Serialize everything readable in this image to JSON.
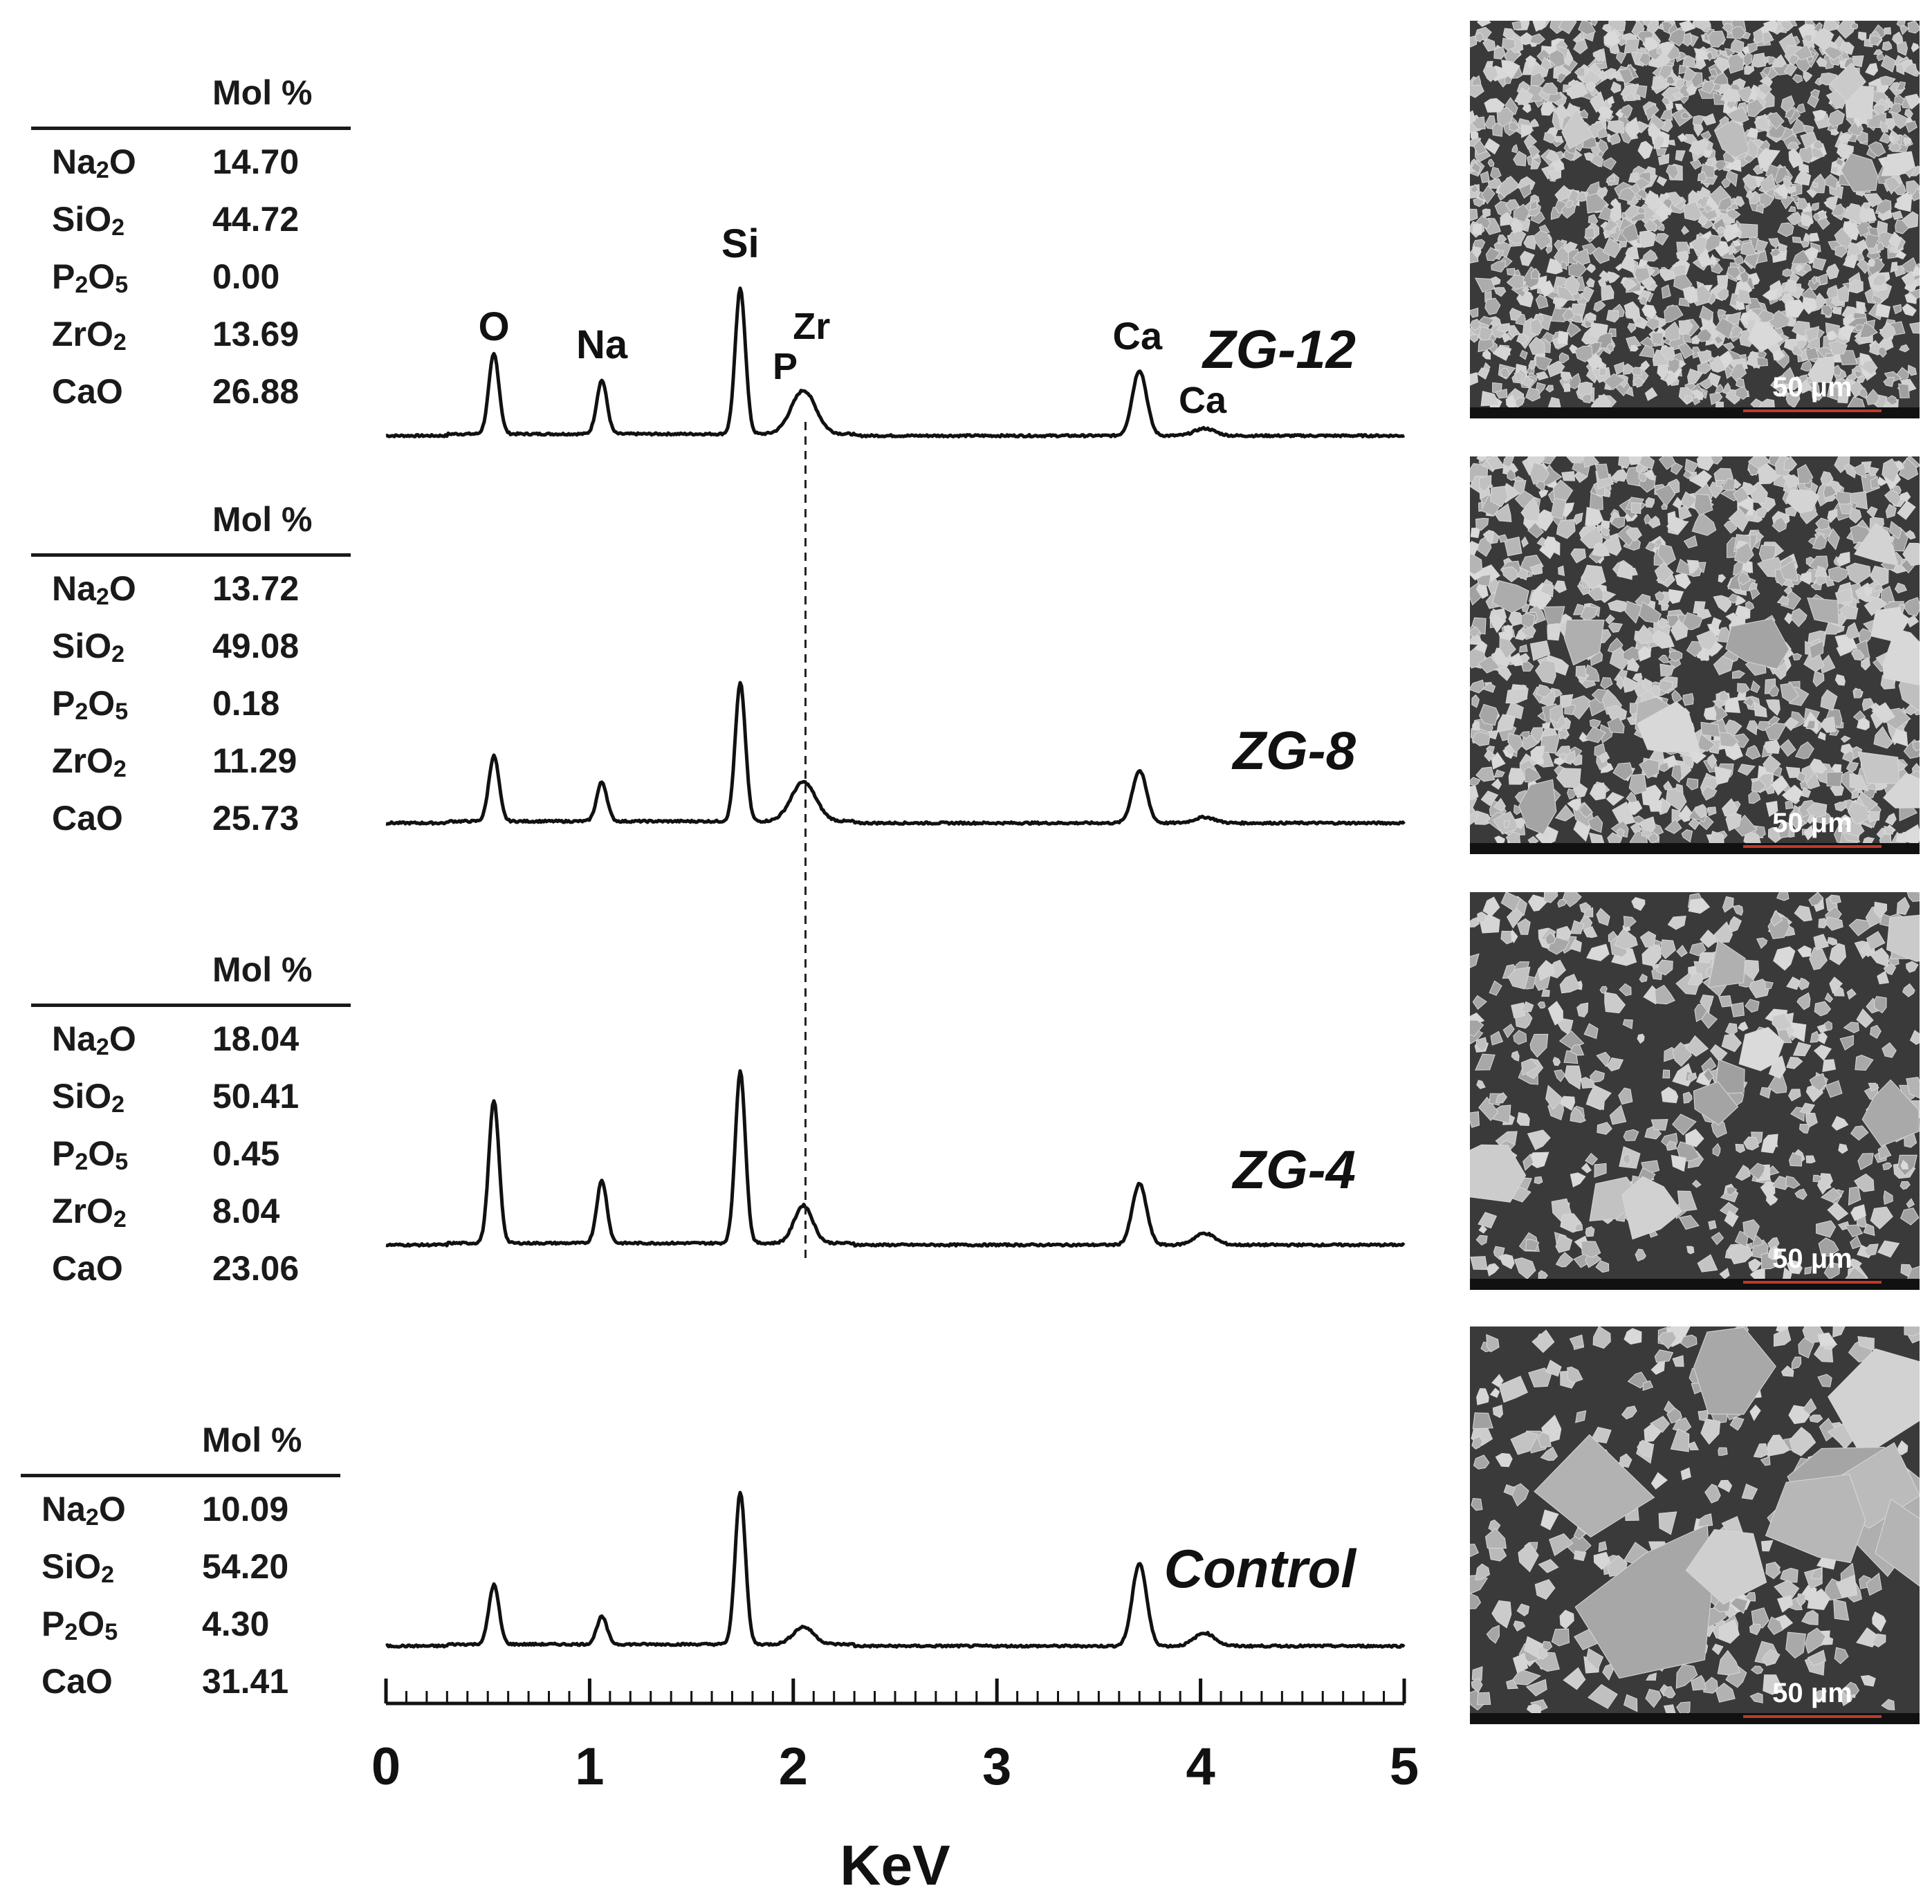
{
  "chart_data": {
    "type": "line",
    "xlabel": "KeV",
    "xlim": [
      0,
      5
    ],
    "xticks": [
      "0",
      "1",
      "2",
      "3",
      "4",
      "5"
    ],
    "reference_line": {
      "x": 2.06,
      "style": "dashed"
    },
    "peak_labels": [
      {
        "text": "O",
        "x": 0.53
      },
      {
        "text": "Na",
        "x": 1.06
      },
      {
        "text": "Si",
        "x": 1.74
      },
      {
        "text": "P",
        "x": 1.96
      },
      {
        "text": "Zr",
        "x": 2.09
      },
      {
        "text": "Ca",
        "x": 3.69
      },
      {
        "text": "Ca",
        "x": 4.01
      }
    ],
    "series": [
      {
        "name": "ZG-12",
        "peaks": [
          {
            "x": 0.53,
            "y": 0.55,
            "w": 0.025
          },
          {
            "x": 1.06,
            "y": 0.37,
            "w": 0.025
          },
          {
            "x": 1.74,
            "y": 1.0,
            "w": 0.025
          },
          {
            "x": 2.05,
            "y": 0.3,
            "w": 0.06
          },
          {
            "x": 3.7,
            "y": 0.45,
            "w": 0.035
          },
          {
            "x": 4.02,
            "y": 0.05,
            "w": 0.05
          }
        ]
      },
      {
        "name": "ZG-8",
        "peaks": [
          {
            "x": 0.53,
            "y": 0.45,
            "w": 0.025
          },
          {
            "x": 1.06,
            "y": 0.27,
            "w": 0.025
          },
          {
            "x": 1.74,
            "y": 0.95,
            "w": 0.025
          },
          {
            "x": 2.05,
            "y": 0.27,
            "w": 0.06
          },
          {
            "x": 3.7,
            "y": 0.36,
            "w": 0.035
          },
          {
            "x": 4.02,
            "y": 0.04,
            "w": 0.05
          }
        ]
      },
      {
        "name": "ZG-4",
        "peaks": [
          {
            "x": 0.53,
            "y": 0.98,
            "w": 0.025
          },
          {
            "x": 1.06,
            "y": 0.43,
            "w": 0.025
          },
          {
            "x": 1.74,
            "y": 1.18,
            "w": 0.025
          },
          {
            "x": 2.05,
            "y": 0.26,
            "w": 0.045
          },
          {
            "x": 3.7,
            "y": 0.42,
            "w": 0.035
          },
          {
            "x": 4.02,
            "y": 0.08,
            "w": 0.05
          }
        ]
      },
      {
        "name": "Control",
        "peaks": [
          {
            "x": 0.53,
            "y": 0.41,
            "w": 0.025
          },
          {
            "x": 1.06,
            "y": 0.19,
            "w": 0.025
          },
          {
            "x": 1.74,
            "y": 1.05,
            "w": 0.025
          },
          {
            "x": 2.05,
            "y": 0.12,
            "w": 0.05
          },
          {
            "x": 3.7,
            "y": 0.57,
            "w": 0.035
          },
          {
            "x": 4.02,
            "y": 0.09,
            "w": 0.05
          }
        ]
      }
    ]
  },
  "compositions": [
    {
      "header": "Mol %",
      "rows": [
        {
          "formula": "Na2O",
          "value": "14.70"
        },
        {
          "formula": "SiO2",
          "value": "44.72"
        },
        {
          "formula": "P2O5",
          "value": "0.00"
        },
        {
          "formula": "ZrO2",
          "value": "13.69"
        },
        {
          "formula": "CaO",
          "value": "26.88"
        }
      ]
    },
    {
      "header": "Mol %",
      "rows": [
        {
          "formula": "Na2O",
          "value": "13.72"
        },
        {
          "formula": "SiO2",
          "value": "49.08"
        },
        {
          "formula": "P2O5",
          "value": "0.18"
        },
        {
          "formula": "ZrO2",
          "value": "11.29"
        },
        {
          "formula": "CaO",
          "value": "25.73"
        }
      ]
    },
    {
      "header": "Mol %",
      "rows": [
        {
          "formula": "Na2O",
          "value": "18.04"
        },
        {
          "formula": "SiO2",
          "value": "50.41"
        },
        {
          "formula": "P2O5",
          "value": "0.45"
        },
        {
          "formula": "ZrO2",
          "value": "8.04"
        },
        {
          "formula": "CaO",
          "value": "23.06"
        }
      ]
    },
    {
      "header": "Mol %",
      "rows": [
        {
          "formula": "Na2O",
          "value": "10.09"
        },
        {
          "formula": "SiO2",
          "value": "54.20"
        },
        {
          "formula": "P2O5",
          "value": "4.30"
        },
        {
          "formula": "CaO",
          "value": "31.41"
        }
      ]
    }
  ],
  "sem_images": [
    {
      "scale_label": "50 μm",
      "density": "dense"
    },
    {
      "scale_label": "50 μm",
      "density": "medium"
    },
    {
      "scale_label": "50 μm",
      "density": "sparse"
    },
    {
      "scale_label": "50 μm",
      "density": "coarse"
    }
  ],
  "colors": {
    "line": "#111111",
    "sem_background": "#3a3a3a",
    "sem_particle": "#bdbdbd",
    "scale_bar": "#c0392b"
  }
}
